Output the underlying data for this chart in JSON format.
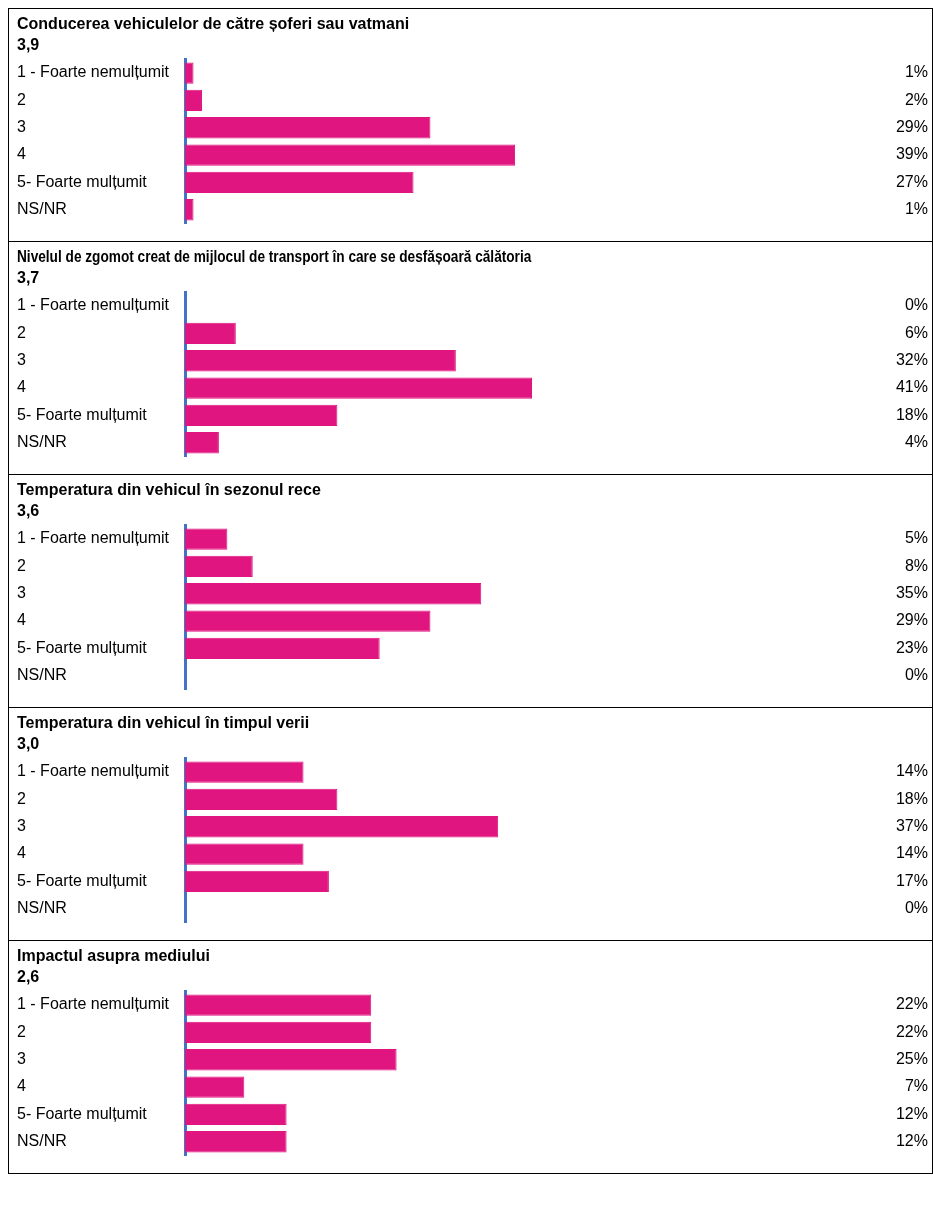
{
  "chart_data": [
    {
      "type": "bar",
      "orientation": "horizontal",
      "title": "Conducerea vehiculelor de către șoferi sau vatmani",
      "subtitle": "3,9",
      "categories": [
        "1 - Foarte nemulțumit",
        "2",
        "3",
        "4",
        "5- Foarte mulțumit",
        "NS/NR"
      ],
      "values": [
        1,
        2,
        29,
        39,
        27,
        1
      ],
      "value_labels": [
        "1%",
        "2%",
        "29%",
        "39%",
        "27%",
        "1%"
      ],
      "color": "#e0157f",
      "tick_labels": "y",
      "legend": false,
      "grid": false
    },
    {
      "type": "bar",
      "orientation": "horizontal",
      "title": "Nivelul de zgomot creat de mijlocul de transport în care se desfășoară călătoria",
      "subtitle": "3,7",
      "categories": [
        "1 - Foarte nemulțumit",
        "2",
        "3",
        "4",
        "5- Foarte mulțumit",
        "NS/NR"
      ],
      "values": [
        0,
        6,
        32,
        41,
        18,
        4
      ],
      "value_labels": [
        "0%",
        "6%",
        "32%",
        "41%",
        "18%",
        "4%"
      ],
      "color": "#e0157f",
      "tick_labels": "y",
      "legend": false,
      "grid": false
    },
    {
      "type": "bar",
      "orientation": "horizontal",
      "title": "Temperatura din vehicul în sezonul rece",
      "subtitle": "3,6",
      "categories": [
        "1 - Foarte nemulțumit",
        "2",
        "3",
        "4",
        "5- Foarte mulțumit",
        "NS/NR"
      ],
      "values": [
        5,
        8,
        35,
        29,
        23,
        0
      ],
      "value_labels": [
        "5%",
        "8%",
        "35%",
        "29%",
        "23%",
        "0%"
      ],
      "color": "#e0157f",
      "tick_labels": "y",
      "legend": false,
      "grid": false
    },
    {
      "type": "bar",
      "orientation": "horizontal",
      "title": "Temperatura din vehicul în timpul verii",
      "subtitle": "3,0",
      "categories": [
        "1 - Foarte nemulțumit",
        "2",
        "3",
        "4",
        "5- Foarte mulțumit",
        "NS/NR"
      ],
      "values": [
        14,
        18,
        37,
        14,
        17,
        0
      ],
      "value_labels": [
        "14%",
        "18%",
        "37%",
        "14%",
        "17%",
        "0%"
      ],
      "color": "#e0157f",
      "tick_labels": "y",
      "legend": false,
      "grid": false
    },
    {
      "type": "bar",
      "orientation": "horizontal",
      "title": "Impactul asupra mediului",
      "subtitle": "2,6",
      "categories": [
        "1 - Foarte nemulțumit",
        "2",
        "3",
        "4",
        "5- Foarte mulțumit",
        "NS/NR"
      ],
      "values": [
        22,
        22,
        25,
        7,
        12,
        12
      ],
      "value_labels": [
        "22%",
        "22%",
        "25%",
        "7%",
        "12%",
        "12%"
      ],
      "color": "#e0157f",
      "tick_labels": "y",
      "legend": false,
      "grid": false
    }
  ]
}
